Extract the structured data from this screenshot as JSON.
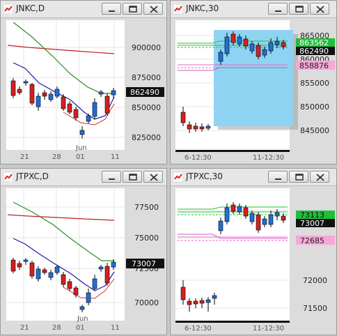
{
  "windows": [
    {
      "id": "jnkc-d",
      "title": "JNKC,D",
      "buttons": [
        "minimize",
        "restore",
        "close"
      ],
      "x_labels": [
        "21",
        "28",
        "01",
        "11"
      ],
      "x_sub_label": "Jun",
      "y_ticks": [
        "900000",
        "875000",
        "850000",
        "825000"
      ],
      "last_price_tag": "862490"
    },
    {
      "id": "jnkc-30",
      "title": "JNKC,30",
      "buttons": [
        "minimize",
        "restore",
        "close"
      ],
      "x_labels": [
        "6-12:30",
        "11-12:30"
      ],
      "y_ticks": [
        "865000",
        "860000",
        "855000",
        "850000",
        "845000"
      ],
      "price_tags": [
        {
          "text": "863562",
          "color": "#1fbf3a",
          "text_color": "#ffffff"
        },
        {
          "text": "862490",
          "color": "#111111",
          "text_color": "#ffffff"
        },
        {
          "text": "858876",
          "color": "#f7a6d6",
          "text_color": "#222222"
        }
      ]
    },
    {
      "id": "jtpxc-d",
      "title": "JTPXC,D",
      "buttons": [
        "minimize",
        "restore",
        "close"
      ],
      "x_labels": [
        "21",
        "28",
        "01",
        "11"
      ],
      "x_sub_label": "Jun",
      "y_ticks": [
        "77500",
        "75000",
        "72500",
        "70000"
      ],
      "last_price_tag": "73007"
    },
    {
      "id": "jtpxc-30",
      "title": "JTPXC,30",
      "buttons": [
        "minimize",
        "restore",
        "close"
      ],
      "x_labels": [
        "6-12:30",
        "11-12:30"
      ],
      "y_ticks": [
        "72000",
        "71500"
      ],
      "price_tags": [
        {
          "text": "73113",
          "color": "#1fbf3a",
          "text_color": "#111111"
        },
        {
          "text": "73007",
          "color": "#111111",
          "text_color": "#ffffff"
        },
        {
          "text": "72685",
          "color": "#f7a6d6",
          "text_color": "#222222"
        }
      ]
    }
  ],
  "colors": {
    "candle_up": "#1f6fd6",
    "candle_down": "#d42020",
    "ma_fast": "#1a1aa8",
    "ma_mid": "#2a8a2a",
    "ma_slow": "#c41e1e",
    "band_green": "#21c42d",
    "band_pink": "#f060c0",
    "selection": "#8fd3f3"
  }
}
